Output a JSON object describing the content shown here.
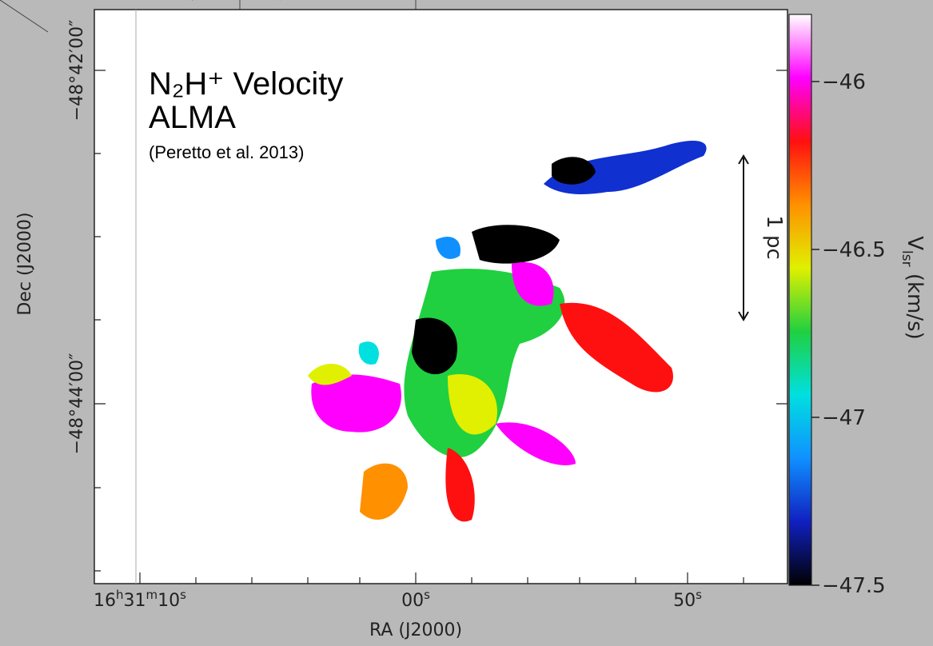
{
  "chart_data": {
    "type": "map",
    "title_lines": [
      "N₂H⁺ Velocity",
      "ALMA"
    ],
    "citation": "(Peretto et al. 2013)",
    "x_label": "RA (J2000)",
    "y_label": "Dec (J2000)",
    "x_tick_labels": [
      [
        "16",
        "h",
        "31",
        "m",
        "10",
        "s"
      ],
      [
        "00",
        "s"
      ],
      [
        "50",
        "s"
      ]
    ],
    "y_tick_labels": [
      "−48°42′00″",
      "−48°44′00″"
    ],
    "scale_bar": "1 pc",
    "colorbar": {
      "label": [
        "V",
        "lsr",
        " (km/s)"
      ],
      "ylim": [
        -47.5,
        -45.8
      ],
      "yticks": [
        {
          "value": -46,
          "label": "−46"
        },
        {
          "value": -46.5,
          "label": "−46.5"
        },
        {
          "value": -47,
          "label": "−47"
        },
        {
          "value": -47.5,
          "label": "−47.5"
        }
      ],
      "colors": [
        "#000000",
        "#1020c0",
        "#1090ff",
        "#00e0e0",
        "#20d040",
        "#e0f000",
        "#ff9000",
        "#ff1010",
        "#ff00ff",
        "#ffffff"
      ]
    }
  }
}
